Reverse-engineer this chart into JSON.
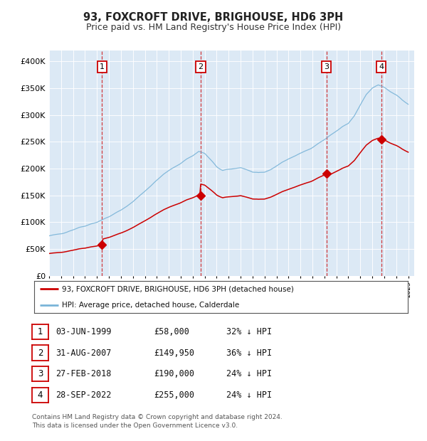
{
  "title": "93, FOXCROFT DRIVE, BRIGHOUSE, HD6 3PH",
  "subtitle": "Price paid vs. HM Land Registry's House Price Index (HPI)",
  "title_fontsize": 10.5,
  "subtitle_fontsize": 9,
  "bg_color": "#dce9f5",
  "hpi_color": "#7ab4d8",
  "price_color": "#cc0000",
  "ylim": [
    0,
    420000
  ],
  "yticks": [
    0,
    50000,
    100000,
    150000,
    200000,
    250000,
    300000,
    350000,
    400000
  ],
  "ytick_labels": [
    "£0",
    "£50K",
    "£100K",
    "£150K",
    "£200K",
    "£250K",
    "£300K",
    "£350K",
    "£400K"
  ],
  "sale_dates": [
    1999.42,
    2007.66,
    2018.16,
    2022.74
  ],
  "sale_prices": [
    58000,
    149950,
    190000,
    255000
  ],
  "sale_labels": [
    "1",
    "2",
    "3",
    "4"
  ],
  "legend_price_label": "93, FOXCROFT DRIVE, BRIGHOUSE, HD6 3PH (detached house)",
  "legend_hpi_label": "HPI: Average price, detached house, Calderdale",
  "table_rows": [
    [
      "1",
      "03-JUN-1999",
      "£58,000",
      "32% ↓ HPI"
    ],
    [
      "2",
      "31-AUG-2007",
      "£149,950",
      "36% ↓ HPI"
    ],
    [
      "3",
      "27-FEB-2018",
      "£190,000",
      "24% ↓ HPI"
    ],
    [
      "4",
      "28-SEP-2022",
      "£255,000",
      "24% ↓ HPI"
    ]
  ],
  "footnote": "Contains HM Land Registry data © Crown copyright and database right 2024.\nThis data is licensed under the Open Government Licence v3.0.",
  "footnote_fontsize": 6.5,
  "hpi_anchors_t": [
    1995.0,
    1995.5,
    1996.0,
    1996.5,
    1997.0,
    1997.5,
    1998.0,
    1998.5,
    1999.0,
    1999.5,
    2000.0,
    2000.5,
    2001.0,
    2001.5,
    2002.0,
    2002.5,
    2003.0,
    2003.5,
    2004.0,
    2004.5,
    2005.0,
    2005.5,
    2006.0,
    2006.5,
    2007.0,
    2007.5,
    2008.0,
    2008.5,
    2009.0,
    2009.5,
    2010.0,
    2010.5,
    2011.0,
    2011.5,
    2012.0,
    2012.5,
    2013.0,
    2013.5,
    2014.0,
    2014.5,
    2015.0,
    2015.5,
    2016.0,
    2016.5,
    2017.0,
    2017.5,
    2018.0,
    2018.5,
    2019.0,
    2019.5,
    2020.0,
    2020.5,
    2021.0,
    2021.5,
    2022.0,
    2022.5,
    2023.0,
    2023.5,
    2024.0,
    2024.5,
    2025.0
  ],
  "hpi_anchors_v": [
    74000,
    76000,
    79000,
    82000,
    86000,
    90000,
    93000,
    97000,
    100000,
    105000,
    110000,
    116000,
    122000,
    130000,
    138000,
    148000,
    158000,
    168000,
    178000,
    188000,
    196000,
    203000,
    210000,
    218000,
    224000,
    232000,
    228000,
    216000,
    203000,
    196000,
    198000,
    200000,
    202000,
    198000,
    193000,
    191000,
    193000,
    198000,
    205000,
    212000,
    218000,
    223000,
    228000,
    234000,
    240000,
    247000,
    254000,
    262000,
    270000,
    278000,
    284000,
    298000,
    318000,
    338000,
    350000,
    356000,
    352000,
    344000,
    338000,
    328000,
    320000
  ]
}
